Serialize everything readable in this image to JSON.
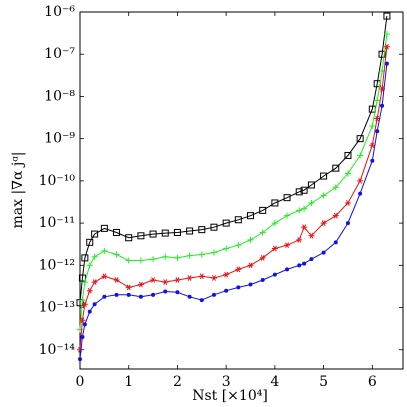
{
  "chart_data": {
    "type": "line",
    "xlabel": "Nst [×10⁴]",
    "ylabel": "max |∇α jᵅ|",
    "x": [
      0,
      0.05,
      0.1,
      0.2,
      0.3,
      0.5,
      0.75,
      1.0,
      1.25,
      1.5,
      1.75,
      2.0,
      2.25,
      2.5,
      2.75,
      3.0,
      3.25,
      3.5,
      3.75,
      4.0,
      4.25,
      4.5,
      4.6,
      4.75,
      5.0,
      5.25,
      5.5,
      5.75,
      6.0,
      6.1,
      6.2,
      6.3
    ],
    "series": [
      {
        "color": "#000000",
        "marker": "square",
        "values": [
          1.3e-13,
          5e-13,
          1.5e-12,
          3.5e-12,
          5.5e-12,
          7.5e-12,
          6e-12,
          4.5e-12,
          5e-12,
          5.5e-12,
          5.8e-12,
          6e-12,
          6.5e-12,
          7e-12,
          8e-12,
          1e-11,
          1.2e-11,
          1.5e-11,
          2e-11,
          3e-11,
          4e-11,
          5.5e-11,
          6e-11,
          8e-11,
          1.3e-10,
          2e-10,
          4e-10,
          1e-09,
          5e-09,
          2e-08,
          1e-07,
          8e-07
        ]
      },
      {
        "color": "#22ee22",
        "marker": "plus",
        "values": [
          3e-14,
          1.5e-13,
          4e-13,
          1e-12,
          1.6e-12,
          2.2e-12,
          1.8e-12,
          1.3e-12,
          1.3e-12,
          1.4e-12,
          1.6e-12,
          1.5e-12,
          1.7e-12,
          1.8e-12,
          2e-12,
          2.5e-12,
          3e-12,
          4e-12,
          6e-12,
          1e-11,
          1.5e-11,
          2e-11,
          2.2e-11,
          3e-11,
          4.5e-11,
          7e-11,
          1.5e-10,
          4e-10,
          2e-09,
          8e-09,
          4e-08,
          3e-07
        ]
      },
      {
        "color": "#ee1111",
        "marker": "star",
        "values": [
          1e-14,
          5e-14,
          1.2e-13,
          2.5e-13,
          4e-13,
          5.5e-13,
          4.5e-13,
          3e-13,
          3.5e-13,
          4.5e-13,
          4e-13,
          4.5e-13,
          5e-13,
          5.5e-13,
          5e-13,
          6e-13,
          8e-13,
          1e-12,
          1.5e-12,
          2.5e-12,
          3e-12,
          4e-12,
          8e-12,
          5e-12,
          1e-11,
          1.5e-11,
          3e-11,
          1e-10,
          7e-10,
          3e-09,
          1.5e-08,
          1.5e-07
        ]
      },
      {
        "color": "#1111ee",
        "marker": "dot",
        "values": [
          6e-15,
          2e-14,
          4e-14,
          8e-14,
          1.2e-13,
          1.8e-13,
          2e-13,
          2e-13,
          1.8e-13,
          2e-13,
          2.4e-13,
          2.3e-13,
          1.8e-13,
          1.5e-13,
          2e-13,
          2.5e-13,
          3e-13,
          3.5e-13,
          4.5e-13,
          6e-13,
          8e-13,
          1e-12,
          1.1e-12,
          1.4e-12,
          2e-12,
          3.5e-12,
          1e-11,
          5e-11,
          3e-10,
          1.5e-09,
          6e-09,
          6e-08
        ]
      }
    ],
    "xlim": [
      0,
      6.63
    ],
    "xticks": [
      0,
      1,
      2,
      3,
      4,
      5,
      6
    ],
    "ylim": [
      3.5e-15,
      1e-06
    ],
    "ylog": true,
    "yticks": [
      {
        "value": 1e-14,
        "label": "10⁻¹⁴"
      },
      {
        "value": 1e-13,
        "label": "10⁻¹³"
      },
      {
        "value": 1e-12,
        "label": "10⁻¹²"
      },
      {
        "value": 1e-11,
        "label": "10⁻¹¹"
      },
      {
        "value": 1e-10,
        "label": "10⁻¹⁰"
      },
      {
        "value": 1e-09,
        "label": "10⁻⁹"
      },
      {
        "value": 1e-08,
        "label": "10⁻⁸"
      },
      {
        "value": 1e-07,
        "label": "10⁻⁷"
      },
      {
        "value": 1e-06,
        "label": "10⁻⁶"
      }
    ]
  }
}
